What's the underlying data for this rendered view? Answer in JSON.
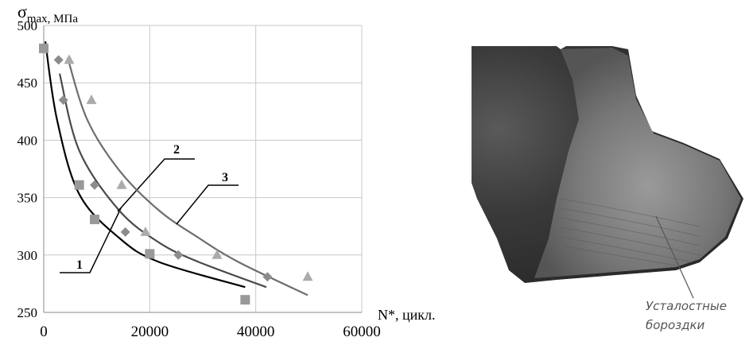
{
  "chart_data": {
    "type": "scatter",
    "y_label": "σ",
    "y_label_sub": "max, МПа",
    "x_label": "N*, цикл.",
    "xlim": [
      0,
      60000
    ],
    "xticks": [
      0,
      20000,
      40000,
      60000
    ],
    "ylim": [
      250,
      500
    ],
    "yticks": [
      250,
      300,
      350,
      400,
      450,
      500
    ],
    "grid": true,
    "series": [
      {
        "marker": "square",
        "color": "#999999",
        "x": [
          0,
          6700,
          9600,
          20000,
          38000
        ],
        "values": [
          480,
          361,
          331,
          301,
          261
        ]
      },
      {
        "marker": "diamond",
        "color": "#8c8c8c",
        "x": [
          2800,
          3700,
          9600,
          15400,
          25400,
          42200
        ],
        "values": [
          470,
          435,
          361,
          320,
          300,
          281
        ]
      },
      {
        "marker": "triangle",
        "color": "#ababab",
        "x": [
          4800,
          9000,
          14700,
          19200,
          32700,
          49800
        ],
        "values": [
          470,
          435,
          361,
          320,
          300,
          281
        ]
      }
    ],
    "curves": [
      {
        "name": "1",
        "color": "#000000",
        "x": [
          300,
          2500,
          6700,
          14200,
          21700,
          38000
        ],
        "values": [
          486,
          418,
          353,
          315,
          294,
          272
        ]
      },
      {
        "name": "2",
        "color": "#4a4a4a",
        "x": [
          3000,
          6700,
          14200,
          21700,
          29200,
          42000
        ],
        "values": [
          458,
          391,
          339,
          311,
          294,
          272
        ]
      },
      {
        "name": "3",
        "color": "#6e6e6e",
        "x": [
          4500,
          8200,
          14200,
          21700,
          29200,
          36700,
          49800
        ],
        "values": [
          472,
          418,
          374,
          339,
          315,
          294,
          265
        ]
      }
    ]
  },
  "image": {
    "annotation_lines": [
      "Усталостные",
      "бороздки"
    ]
  }
}
